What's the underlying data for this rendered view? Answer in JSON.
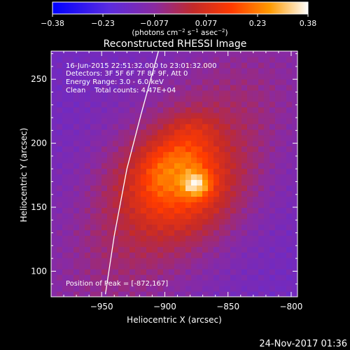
{
  "chart_data": {
    "type": "heatmap",
    "title": "Reconstructed RHESSI Image",
    "xlabel": "Heliocentric X (arcsec)",
    "ylabel": "Heliocentric Y (arcsec)",
    "xlim": [
      -990,
      -795
    ],
    "ylim": [
      80,
      272
    ],
    "xticks": [
      -950,
      -900,
      -850,
      -800
    ],
    "xtick_labels": [
      "−950",
      "−900",
      "−850",
      "−800"
    ],
    "yticks": [
      100,
      150,
      200,
      250
    ],
    "ytick_labels": [
      "100",
      "150",
      "200",
      "250"
    ],
    "colorbar": {
      "min": -0.38,
      "max": 0.38,
      "ticks": [
        -0.38,
        -0.23,
        -0.077,
        0.077,
        0.23,
        0.38
      ],
      "tick_labels": [
        "−0.38",
        "−0.23",
        "−0.077",
        "0.077",
        "0.23",
        "0.38"
      ],
      "units_prefix": "(photons cm",
      "units_sup1": "−2",
      "units_mid": " s",
      "units_sup2": "−1",
      "units_mid2": " asec",
      "units_sup3": "−2",
      "units_suffix": ")"
    },
    "info_lines": [
      "16-Jun-2015 22:51:32.000 to 23:01:32.000",
      "Detectors: 3F 5F 6F 7F 8F 9F, Att 0",
      "Energy Range: 3.0 - 6.0 keV",
      "Clean    Total counts: 4.47E+04"
    ],
    "peak_label": "Position of Peak = [-872,167]",
    "peak": {
      "x": -872,
      "y": 167
    },
    "grid": false,
    "limb_arc": [
      [
        -947,
        82
      ],
      [
        -940,
        128
      ],
      [
        -930,
        180
      ],
      [
        -919,
        222
      ],
      [
        -905,
        272
      ]
    ],
    "source_blobs": [
      {
        "x": -875,
        "y": 168,
        "sx": 8,
        "sy": 7,
        "amp": 0.2
      },
      {
        "x": -890,
        "y": 168,
        "sx": 30,
        "sy": 26,
        "amp": 0.18
      },
      {
        "x": -885,
        "y": 190,
        "sx": 15,
        "sy": 11,
        "amp": 0.08
      },
      {
        "x": -905,
        "y": 175,
        "sx": 9,
        "sy": 12,
        "amp": 0.05
      },
      {
        "x": -878,
        "y": 212,
        "sx": 14,
        "sy": 9,
        "amp": 0.06
      }
    ],
    "background_level": -0.14
  },
  "footer_timestamp": "24-Nov-2017 01:36"
}
